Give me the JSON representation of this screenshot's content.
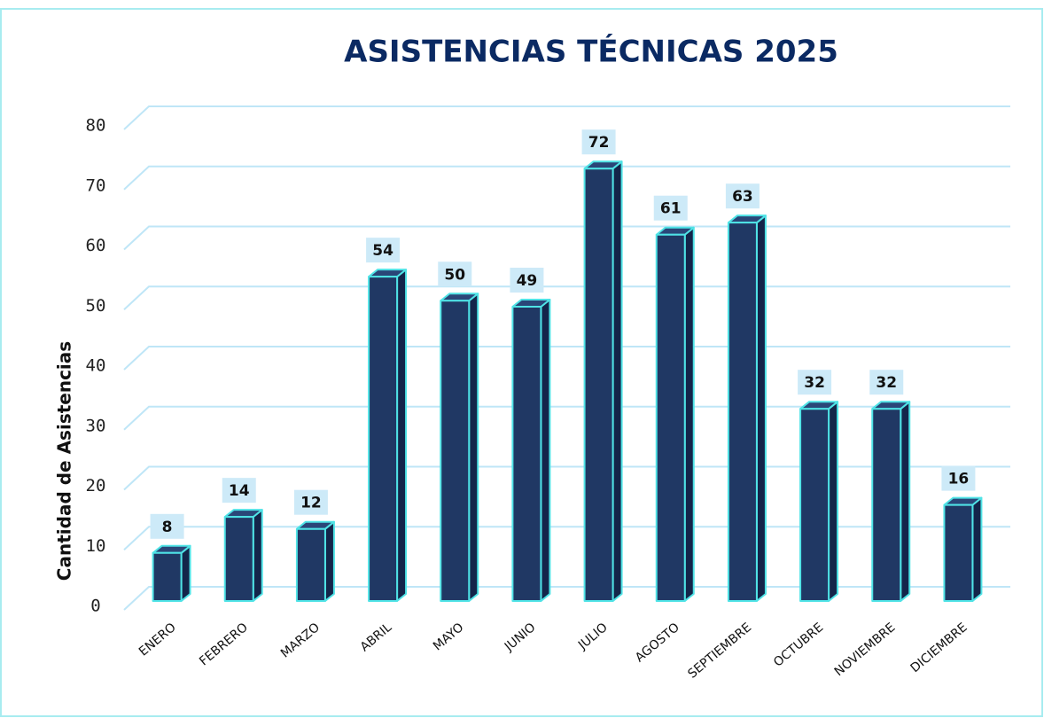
{
  "chart_data": {
    "type": "bar3d",
    "title": "ASISTENCIAS TÉCNICAS 2025",
    "ylabel": "Cantidad de Asistencias",
    "categories": [
      "ENERO",
      "FEBRERO",
      "MARZO",
      "ABRIL",
      "MAYO",
      "JUNIO",
      "JULIO",
      "AGOSTO",
      "SEPTIEMBRE",
      "OCTUBRE",
      "NOVIEMBRE",
      "DICIEMBRE"
    ],
    "values": [
      8,
      14,
      12,
      54,
      50,
      49,
      72,
      61,
      63,
      32,
      32,
      16
    ],
    "color": "#203864",
    "edge_color": "#4fe3e6",
    "ylim": [
      0,
      80
    ],
    "yticks": [
      0,
      10,
      20,
      30,
      40,
      50,
      60,
      70,
      80
    ],
    "grid": true
  }
}
